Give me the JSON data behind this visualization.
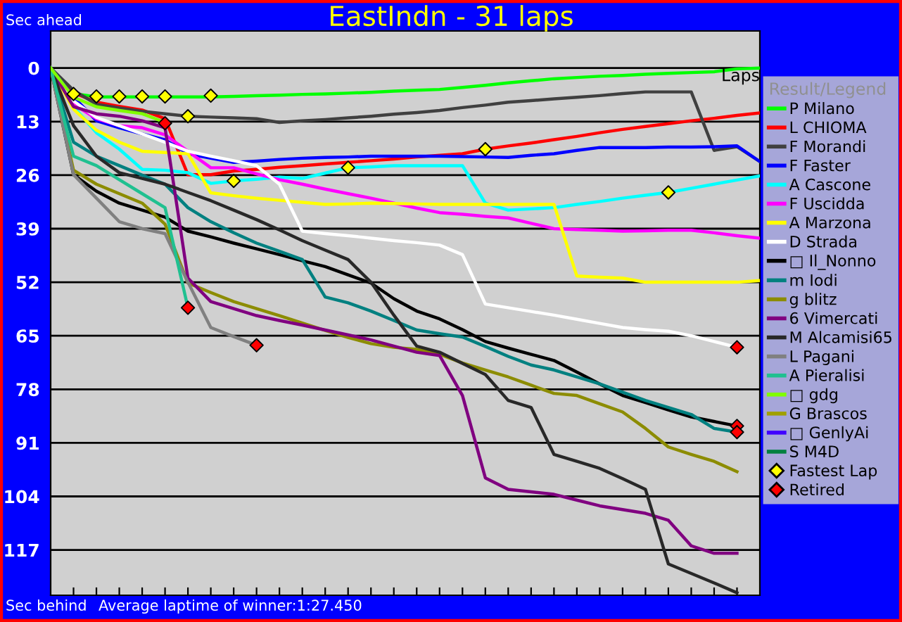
{
  "chart_data": {
    "type": "line",
    "title": "EastIndn - 31 laps",
    "xlabel": "Laps",
    "legend_title": "Result/Legend",
    "annotations": [
      "Sec ahead",
      "Sec behind",
      "Average laptime of winner:1:27.450"
    ],
    "categories": [
      null,
      null,
      null,
      null,
      null,
      null,
      null,
      null,
      null,
      null,
      null,
      null,
      null,
      null,
      null,
      null,
      null,
      null,
      null,
      null,
      null,
      null,
      null,
      null,
      null,
      null,
      null,
      null,
      null,
      null,
      null,
      null
    ],
    "ylim": [
      128,
      -9
    ],
    "yticks": [
      0,
      13,
      26,
      39,
      52,
      65,
      78,
      91,
      104,
      117
    ],
    "grid": "y",
    "legend": "right",
    "tick_labels": "y",
    "marker": "none",
    "line_style": "solid",
    "series": [
      {
        "name": "P Milano",
        "color": "#00ff00",
        "values": [
          0,
          6.2,
          7,
          7,
          7,
          7,
          7,
          7,
          6.9,
          6.7,
          6.6,
          6.4,
          6.3,
          6.1,
          5.9,
          5.6,
          5.4,
          5.2,
          4.7,
          4.2,
          3.6,
          3.1,
          2.6,
          2.3,
          2,
          1.8,
          1.5,
          1.3,
          1.1,
          0.9,
          0.2,
          0
        ]
      },
      {
        "name": "L CHIOMA",
        "color": "#ff0000",
        "values": [
          0,
          6,
          8.3,
          9.3,
          10.2,
          12.3,
          25.9,
          25.9,
          25,
          24.6,
          24.1,
          23.7,
          23.3,
          22.9,
          22.5,
          22.1,
          21.6,
          21.2,
          20.8,
          19.7,
          18.9,
          18.2,
          17.4,
          16.6,
          15.7,
          14.9,
          14.2,
          13.5,
          12.8,
          12.2,
          11.5,
          10.9
        ]
      },
      {
        "name": "F Morandi",
        "color": "#404040",
        "values": [
          0,
          5.4,
          8.8,
          9.7,
          10.5,
          11.1,
          11.7,
          11.9,
          12.1,
          12.3,
          13.2,
          12.8,
          12.5,
          12.1,
          11.7,
          11.2,
          10.8,
          10.3,
          9.6,
          9,
          8.3,
          7.9,
          7.5,
          7.1,
          6.7,
          6.2,
          5.8,
          5.8,
          5.8,
          20,
          19.1,
          22.7
        ]
      },
      {
        "name": "F Faster",
        "color": "#0000ff",
        "values": [
          0,
          7,
          12.8,
          14.5,
          16,
          17.4,
          20.8,
          21.9,
          22.9,
          22.6,
          22.2,
          21.9,
          21.7,
          21.6,
          21.4,
          21.4,
          21.4,
          21.4,
          21.5,
          21.6,
          21.7,
          21.2,
          20.8,
          20,
          19.3,
          19.3,
          19.3,
          19.2,
          19.2,
          19.1,
          18.9,
          22.7
        ]
      },
      {
        "name": "A Cascone",
        "color": "#00ffff",
        "values": [
          0,
          9.4,
          15.7,
          19.7,
          24.6,
          24.8,
          25.4,
          28,
          27.4,
          27,
          26.5,
          26.8,
          25.5,
          24.2,
          24,
          23.7,
          23.7,
          23.7,
          23.7,
          32.8,
          34.5,
          34.2,
          33.9,
          33.1,
          32.4,
          31.6,
          30.9,
          30.2,
          29.2,
          28.2,
          27.2,
          26.2
        ]
      },
      {
        "name": "F Uscidda",
        "color": "#ff00ff",
        "values": [
          0,
          8.8,
          12.3,
          14,
          14.5,
          16.2,
          20.2,
          24.2,
          24.2,
          25.7,
          27.1,
          28.2,
          29.4,
          30.5,
          31.6,
          32.8,
          34,
          35.1,
          35.5,
          36,
          36.4,
          37.7,
          39,
          39.2,
          39.4,
          39.6,
          39.5,
          39.4,
          39.4,
          40,
          40.7,
          41.3
        ]
      },
      {
        "name": "A Marzona",
        "color": "#ffff00",
        "values": [
          0,
          10,
          15.1,
          18,
          20.2,
          20.5,
          20.8,
          30.3,
          31,
          31.6,
          32.1,
          32.6,
          33.1,
          33,
          32.8,
          32.9,
          33,
          33.1,
          33.1,
          33.1,
          33.1,
          33.1,
          33.1,
          50.5,
          50.8,
          51,
          52,
          52,
          52,
          52,
          52,
          51.6
        ]
      },
      {
        "name": "D Strada",
        "color": "#ffffff",
        "values": [
          0,
          8,
          12,
          14,
          16,
          18,
          20.2,
          21.4,
          22.5,
          23.7,
          28.2,
          39.6,
          40.2,
          40.7,
          41.3,
          41.9,
          42.4,
          43,
          45.3,
          57.3,
          58.2,
          59.1,
          60,
          61,
          62,
          63,
          63.5,
          63.9,
          65,
          66.4,
          67.8,
          null
        ]
      },
      {
        "name": "□ Il_Nonno",
        "color": "#000000",
        "values": [
          0,
          25.9,
          29.9,
          32.8,
          34.5,
          36.2,
          39.6,
          41,
          42.5,
          43.9,
          45.3,
          46.8,
          48.2,
          50.2,
          52.2,
          56,
          59,
          60.9,
          63.5,
          66.4,
          68,
          69.5,
          71,
          73.8,
          76.7,
          79.5,
          81.2,
          83,
          84.7,
          85.8,
          86.9,
          null
        ]
      },
      {
        "name": "m Iodi",
        "color": "#008080",
        "values": [
          0,
          18,
          21.4,
          23.7,
          26,
          28.2,
          33.9,
          37.3,
          40,
          42.5,
          44.5,
          46.5,
          55.6,
          57,
          59,
          61.3,
          63.6,
          64.5,
          65.3,
          67.6,
          70,
          72.1,
          73.3,
          75,
          76.7,
          78.7,
          80.7,
          82.4,
          84.1,
          87.5,
          88.4,
          null
        ]
      },
      {
        "name": "g blitz",
        "color": "#8c8c00",
        "values": [
          0,
          24.8,
          28.2,
          30.5,
          32.8,
          37.9,
          52.2,
          54.5,
          56.7,
          58.4,
          60.1,
          61.9,
          63.7,
          65.4,
          66.9,
          67.8,
          68.3,
          69.5,
          71.6,
          73.3,
          75,
          77,
          79,
          79.5,
          81.5,
          83.5,
          87.5,
          92,
          93.8,
          95.5,
          98,
          null
        ]
      },
      {
        "name": "6 Vimercati",
        "color": "#800080",
        "values": [
          0,
          9.4,
          11.1,
          11.7,
          12.8,
          14.5,
          51,
          56.7,
          58.4,
          60.1,
          61.3,
          62.4,
          63.6,
          64.8,
          66,
          67.5,
          69,
          69.8,
          79.5,
          99.5,
          102.3,
          102.9,
          103.5,
          104.9,
          106.3,
          107.2,
          108.1,
          109.8,
          116,
          117.8,
          117.8,
          null
        ]
      },
      {
        "name": "M Alcamisi65",
        "color": "#282828",
        "values": [
          0,
          14,
          21.4,
          25.4,
          26.8,
          28.2,
          30.2,
          32.2,
          34.5,
          36.8,
          39.3,
          41.9,
          44.2,
          46.5,
          52,
          60,
          67.5,
          69,
          71.7,
          74.4,
          80.7,
          82.4,
          93.8,
          95.5,
          97.2,
          99.7,
          102.3,
          120.4,
          122.7,
          125,
          127.4,
          null
        ]
      },
      {
        "name": "L Pagani",
        "color": "#808080",
        "values": [
          0,
          25.9,
          31.6,
          37.3,
          39,
          40.2,
          52,
          63,
          65.2,
          67.3,
          null,
          null,
          null,
          null,
          null,
          null,
          null,
          null,
          null,
          null,
          null,
          null,
          null,
          null,
          null,
          null,
          null,
          null,
          null,
          null,
          null,
          null
        ]
      },
      {
        "name": "A Pieralisi",
        "color": "#20c090",
        "values": [
          0,
          21.4,
          23.7,
          27.1,
          30.5,
          33.9,
          58.2,
          null,
          null,
          null,
          null,
          null,
          null,
          null,
          null,
          null,
          null,
          null,
          null,
          null,
          null,
          null,
          null,
          null,
          null,
          null,
          null,
          null,
          null,
          null,
          null,
          null
        ]
      },
      {
        "name": "□ gdg",
        "color": "#80ff00",
        "values": [
          0,
          7.1,
          9.4,
          10.3,
          11.1,
          13.2,
          null,
          null,
          null,
          null,
          null,
          null,
          null,
          null,
          null,
          null,
          null,
          null,
          null,
          null,
          null,
          null,
          null,
          null,
          null,
          null,
          null,
          null,
          null,
          null,
          null,
          null
        ]
      },
      {
        "name": "G Brascos",
        "color": "#a0a000",
        "values": [
          null,
          null,
          null,
          null,
          null,
          null,
          null,
          null,
          null,
          null,
          null,
          null,
          null,
          null,
          null,
          null,
          null,
          null,
          null,
          null,
          null,
          null,
          null,
          null,
          null,
          null,
          null,
          null,
          null,
          null,
          null,
          null
        ]
      },
      {
        "name": "□ GenlyAi",
        "color": "#4000ff",
        "values": [
          null,
          null,
          null,
          null,
          null,
          null,
          null,
          null,
          null,
          null,
          null,
          null,
          null,
          null,
          null,
          null,
          null,
          null,
          null,
          null,
          null,
          null,
          null,
          null,
          null,
          null,
          null,
          null,
          null,
          null,
          null,
          null
        ]
      },
      {
        "name": "S M4D",
        "color": "#008040",
        "values": [
          null,
          null,
          null,
          null,
          null,
          null,
          null,
          null,
          null,
          null,
          null,
          null,
          null,
          null,
          null,
          null,
          null,
          null,
          null,
          null,
          null,
          null,
          null,
          null,
          null,
          null,
          null,
          null,
          null,
          null,
          null,
          null
        ]
      },
      {
        "name": "Fastest Lap",
        "type": "scatter",
        "marker": "diamond",
        "color": "#ffff00",
        "values": [
          null,
          6.3,
          6.9,
          6.9,
          6.9,
          6.9,
          11.7,
          6.7,
          27.4,
          null,
          null,
          null,
          null,
          24.2,
          null,
          null,
          null,
          null,
          null,
          19.7,
          null,
          null,
          null,
          null,
          null,
          null,
          null,
          30.2,
          null,
          null,
          null,
          null
        ]
      },
      {
        "name": "Retired",
        "type": "scatter",
        "marker": "diamond",
        "color": "#ff0000",
        "values": [
          null,
          null,
          null,
          null,
          null,
          13.4,
          58.2,
          null,
          null,
          67.3,
          null,
          null,
          null,
          null,
          null,
          null,
          null,
          null,
          null,
          null,
          null,
          null,
          null,
          null,
          null,
          null,
          null,
          null,
          null,
          null,
          67.8,
          null
        ]
      },
      {
        "type": "scatter",
        "marker": "diamond",
        "color": "#ff0000",
        "values": [
          null,
          null,
          null,
          null,
          null,
          null,
          null,
          null,
          null,
          null,
          null,
          null,
          null,
          null,
          null,
          null,
          null,
          null,
          null,
          null,
          null,
          null,
          null,
          null,
          null,
          null,
          null,
          null,
          null,
          null,
          86.9,
          null
        ]
      },
      {
        "type": "scatter",
        "marker": "diamond",
        "color": "#ff0000",
        "values": [
          null,
          null,
          null,
          null,
          null,
          null,
          null,
          null,
          null,
          null,
          null,
          null,
          null,
          null,
          null,
          null,
          null,
          null,
          null,
          null,
          null,
          null,
          null,
          null,
          null,
          null,
          null,
          null,
          null,
          null,
          88.4,
          null
        ]
      }
    ]
  }
}
